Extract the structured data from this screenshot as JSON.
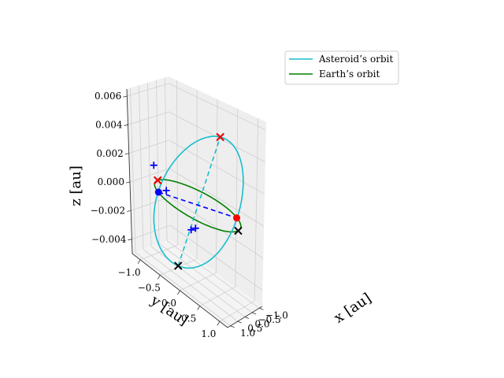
{
  "chart_data": {
    "type": "line",
    "projection": "3d",
    "xlabel": "x [au]",
    "ylabel": "y [au]",
    "zlabel": "z [au]",
    "xlim": [
      -1.2,
      1.2
    ],
    "ylim": [
      -1.2,
      1.2
    ],
    "zlim": [
      -0.005,
      0.0065
    ],
    "x_ticks": [
      "−1.0",
      "−0.5",
      "0.0",
      "0.5",
      "1.0"
    ],
    "y_ticks": [
      "−1.0",
      "−0.5",
      "0.0",
      "0.5",
      "1.0"
    ],
    "z_ticks": [
      "−0.004",
      "−0.002",
      "0.000",
      "0.002",
      "0.004",
      "0.006"
    ],
    "grid": true,
    "legend_position": "top-right",
    "series": [
      {
        "name": "Asteroid’s orbit",
        "color": "#17becf",
        "style": "solid",
        "semi_major_axis": 1.2,
        "inclination_slope": 0.005
      },
      {
        "name": "Earth’s orbit",
        "color": "#008000",
        "style": "solid",
        "radius": 1.0
      }
    ],
    "node_line": {
      "color": "#0000ff",
      "style": "dashed",
      "from": [
        -0.7,
        0.7,
        0.0
      ],
      "to": [
        0.7,
        -0.7,
        0.0
      ]
    },
    "apsis_line": {
      "color": "#17becf",
      "style": "dashed",
      "from": [
        -0.85,
        -0.85,
        -0.006
      ],
      "to": [
        0.85,
        0.85,
        0.006
      ]
    },
    "markers": [
      {
        "marker": "circle",
        "color": "#0000ff",
        "x": -0.7,
        "y": 0.7,
        "z": 0.0
      },
      {
        "marker": "circle",
        "color": "#ff0000",
        "x": 0.7,
        "y": -0.7,
        "z": 0.0
      },
      {
        "marker": "x",
        "color": "#000000",
        "x": 0.85,
        "y": 0.85,
        "z": 0.006
      },
      {
        "marker": "x",
        "color": "#000000",
        "x": -0.85,
        "y": -0.85,
        "z": -0.006
      },
      {
        "marker": "x",
        "color": "#000000",
        "x": 1.0,
        "y": 0.0,
        "z": 0.0
      },
      {
        "marker": "x",
        "color": "#000000",
        "x": -1.0,
        "y": 0.0,
        "z": 0.0
      },
      {
        "marker": "x",
        "color": "#ff0000",
        "x": 0.85,
        "y": 0.85,
        "z": 0.006
      },
      {
        "marker": "x",
        "color": "#ff0000",
        "x": -1.0,
        "y": 0.0,
        "z": 0.0
      },
      {
        "marker": "plus",
        "color": "#0000ff",
        "x": -1.05,
        "y": 0.1,
        "z": 0.001
      },
      {
        "marker": "plus",
        "color": "#0000ff",
        "x": -0.85,
        "y": -0.15,
        "z": -0.0005
      },
      {
        "marker": "plus",
        "color": "#0000ff",
        "x": -0.2,
        "y": -0.35,
        "z": -0.002
      },
      {
        "marker": "plus",
        "color": "#0000ff",
        "x": -0.55,
        "y": -0.95,
        "z": -0.003
      }
    ]
  }
}
